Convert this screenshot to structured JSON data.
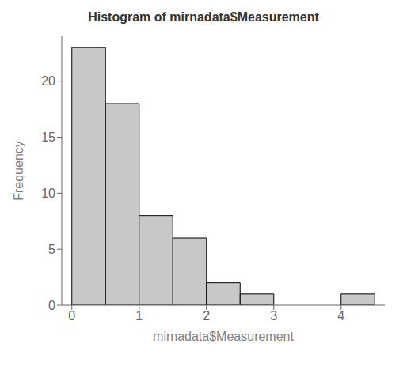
{
  "chart_data": {
    "type": "histogram",
    "title": "Histogram of mirnadata$Measurement",
    "xlabel": "mirnadata$Measurement",
    "ylabel": "Frequency",
    "bins": [
      0.0,
      0.5,
      1.0,
      1.5,
      2.0,
      2.5,
      3.0,
      3.5,
      4.0,
      4.5
    ],
    "values": [
      23,
      18,
      8,
      6,
      2,
      1,
      0,
      0,
      1
    ],
    "color": "#c8c8c8",
    "xlim": [
      -0.15,
      4.65
    ],
    "ylim": [
      0,
      24
    ],
    "xticks": [
      0,
      1,
      2,
      3,
      4
    ],
    "yticks": [
      0,
      5,
      10,
      15,
      20
    ],
    "grid": false
  }
}
